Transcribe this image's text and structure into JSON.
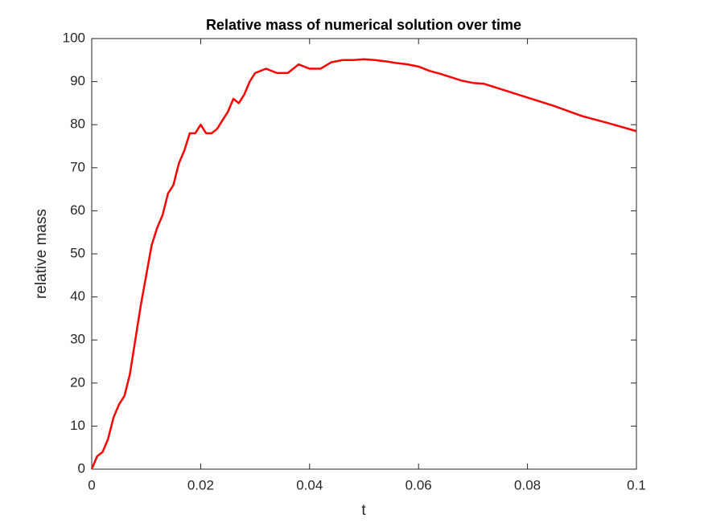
{
  "chart_data": {
    "type": "line",
    "title": "Relative mass of numerical solution over time",
    "xlabel": "t",
    "ylabel": "relative mass",
    "color": "#ff0000",
    "x": [
      0,
      0.001,
      0.002,
      0.003,
      0.004,
      0.005,
      0.006,
      0.007,
      0.008,
      0.009,
      0.01,
      0.011,
      0.012,
      0.013,
      0.014,
      0.015,
      0.016,
      0.017,
      0.018,
      0.019,
      0.02,
      0.021,
      0.022,
      0.023,
      0.024,
      0.025,
      0.026,
      0.027,
      0.028,
      0.029,
      0.03,
      0.032,
      0.034,
      0.036,
      0.038,
      0.04,
      0.042,
      0.044,
      0.046,
      0.048,
      0.05,
      0.052,
      0.054,
      0.056,
      0.058,
      0.06,
      0.062,
      0.064,
      0.066,
      0.068,
      0.07,
      0.072,
      0.075,
      0.08,
      0.085,
      0.09,
      0.095,
      0.1
    ],
    "values": [
      0,
      3,
      4,
      7,
      12,
      15,
      17,
      22,
      30,
      38,
      45,
      52,
      56,
      59,
      64,
      66,
      71,
      74,
      78,
      78,
      80,
      78,
      78,
      79,
      81,
      83,
      86,
      85,
      87,
      90,
      92,
      93,
      92,
      92,
      94,
      93,
      93,
      94.5,
      95,
      95,
      95.2,
      95,
      94.7,
      94.3,
      94,
      93.5,
      92.5,
      91.8,
      91,
      90.2,
      89.7,
      89.5,
      88.3,
      86.3,
      84.3,
      82,
      80.3,
      78.5
    ],
    "xlim": [
      0,
      0.1
    ],
    "xticks": [
      0,
      0.02,
      0.04,
      0.06,
      0.08,
      0.1
    ],
    "ylim": [
      0,
      100
    ],
    "yticks": [
      0,
      10,
      20,
      30,
      40,
      50,
      60,
      70,
      80,
      90,
      100
    ]
  }
}
